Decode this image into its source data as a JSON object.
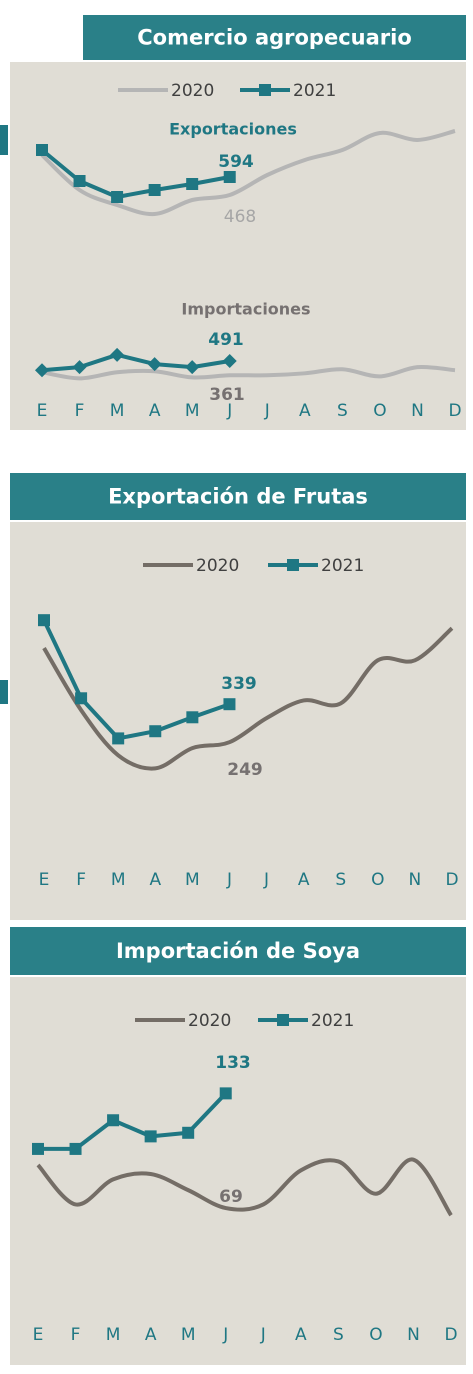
{
  "chart_data": [
    {
      "type": "line",
      "title": "Comercio agropecuario",
      "categories": [
        "E",
        "F",
        "M",
        "A",
        "M",
        "J",
        "J",
        "A",
        "S",
        "O",
        "N",
        "D"
      ],
      "panels": [
        {
          "label": "Exportaciones",
          "ylim": [
            300,
            1000
          ],
          "series": [
            {
              "name": "2020",
              "color": "#b5b5b5",
              "values": [
                748,
                503,
                398,
                335,
                433,
                468,
                608,
                713,
                783,
                902,
                853,
                916
              ]
            },
            {
              "name": "2021",
              "color": "#1f7783",
              "values": [
                783,
                566,
                454,
                503,
                545,
                594,
                null,
                null,
                null,
                null,
                null,
                null
              ]
            }
          ]
        },
        {
          "label": "Importaciones",
          "ylim": [
            300,
            600
          ],
          "series": [
            {
              "name": "2020",
              "color": "#b5b5b5",
              "values": [
                389,
                333,
                389,
                398,
                342,
                361,
                361,
                379,
                416,
                351,
                435,
                407
              ]
            },
            {
              "name": "2021",
              "color": "#1f7783",
              "values": [
                407,
                435,
                547,
                463,
                435,
                491,
                null,
                null,
                null,
                null,
                null,
                null
              ]
            }
          ]
        }
      ]
    },
    {
      "type": "line",
      "title": "Exportación de Frutas",
      "categories": [
        "E",
        "F",
        "M",
        "A",
        "M",
        "J",
        "J",
        "A",
        "S",
        "O",
        "N",
        "D"
      ],
      "panels": [
        {
          "ylim": [
            150,
            600
          ],
          "series": [
            {
              "name": "2020",
              "color": "#746d66",
              "values": [
                472,
                325,
                218,
                187,
                235,
                249,
                306,
                348,
                341,
                443,
                443,
                519
              ]
            },
            {
              "name": "2021",
              "color": "#1f7783",
              "values": [
                538,
                353,
                258,
                275,
                308,
                339,
                null,
                null,
                null,
                null,
                null,
                null
              ]
            }
          ]
        }
      ]
    },
    {
      "type": "line",
      "title": "Importación de Soya",
      "categories": [
        "E",
        "F",
        "M",
        "A",
        "M",
        "J",
        "J",
        "A",
        "S",
        "O",
        "N",
        "D"
      ],
      "panels": [
        {
          "ylim": [
            40,
            160
          ],
          "series": [
            {
              "name": "2020",
              "color": "#746d66",
              "values": [
                93,
                71,
                85,
                88,
                79,
                69,
                71,
                90,
                95,
                77,
                96,
                65
              ]
            },
            {
              "name": "2021",
              "color": "#1f7783",
              "values": [
                102,
                102,
                118,
                109,
                111,
                133,
                null,
                null,
                null,
                null,
                null,
                null
              ]
            }
          ]
        }
      ]
    }
  ]
}
